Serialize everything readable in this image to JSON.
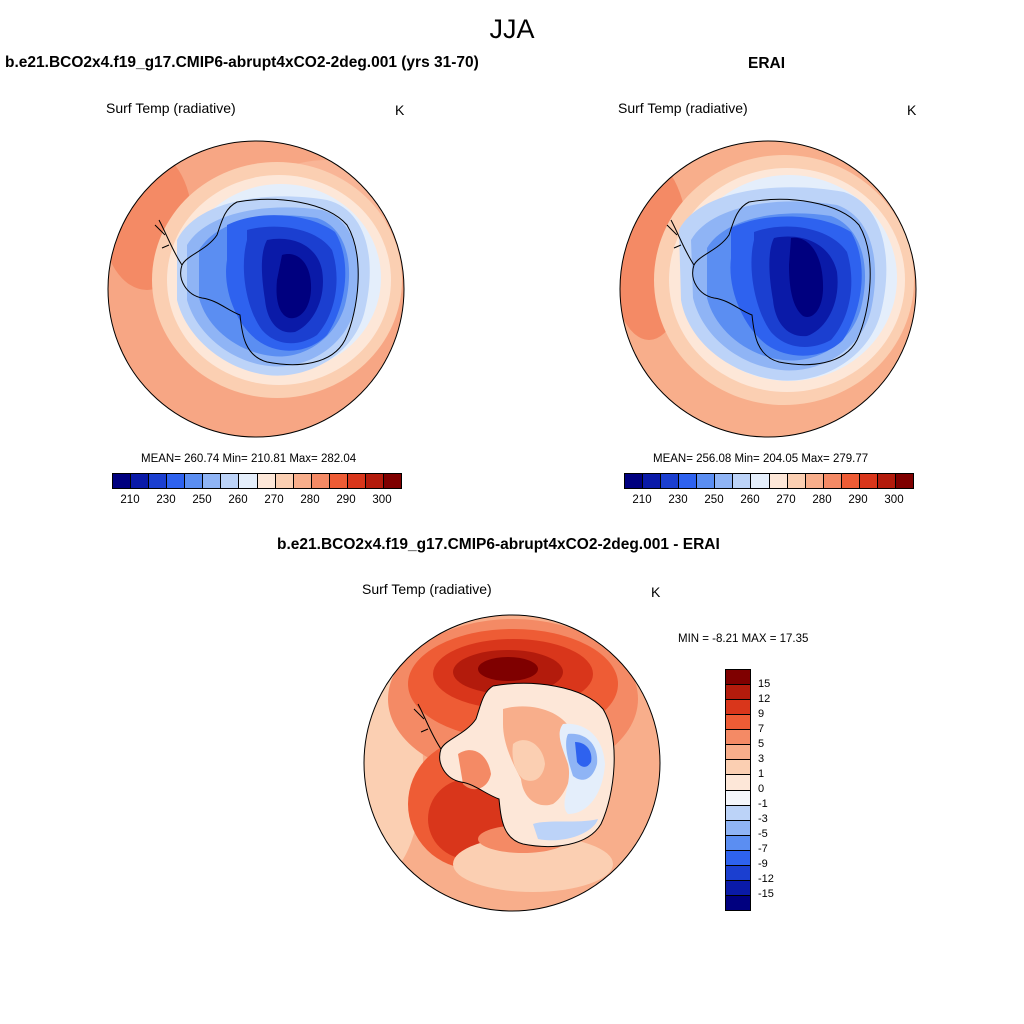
{
  "season": "JJA",
  "variable": "Surf Temp (radiative)",
  "unit": "K",
  "panels": {
    "model": {
      "title": "b.e21.BCO2x4.f19_g17.CMIP6-abrupt4xCO2-2deg.001 (yrs 31-70)",
      "stats": "MEAN= 260.74  Min= 210.81  Max= 282.04"
    },
    "obs": {
      "title": "ERAI",
      "stats": "MEAN= 256.08  Min= 204.05  Max= 279.77"
    },
    "diff": {
      "title": "b.e21.BCO2x4.f19_g17.CMIP6-abrupt4xCO2-2deg.001 - ERAI",
      "stats": "MIN =  -8.21 MAX =  17.35"
    }
  },
  "colorbars": {
    "abs_labels": [
      "210",
      "230",
      "250",
      "260",
      "270",
      "280",
      "290",
      "300"
    ],
    "abs_colors": [
      "#00007f",
      "#0a1aa8",
      "#1b3fd0",
      "#2e62ef",
      "#5b8ef2",
      "#8fb4f5",
      "#bcd3f8",
      "#e4eefb",
      "#fde7d8",
      "#fbcfb2",
      "#f8ae8b",
      "#f48a65",
      "#ee5c35",
      "#d9361b",
      "#b31b0c",
      "#7f0000"
    ],
    "diff_labels": [
      "15",
      "12",
      "9",
      "7",
      "5",
      "3",
      "1",
      "0",
      "-1",
      "-3",
      "-5",
      "-7",
      "-9",
      "-12",
      "-15"
    ],
    "diff_colors": [
      "#7f0000",
      "#b31b0c",
      "#d9361b",
      "#ee5c35",
      "#f48a65",
      "#f8ae8b",
      "#fbcfb2",
      "#fde7d8",
      "#f4f6fb",
      "#bcd3f8",
      "#8fb4f5",
      "#5b8ef2",
      "#2e62ef",
      "#1b3fd0",
      "#0a1aa8",
      "#00007f"
    ]
  }
}
